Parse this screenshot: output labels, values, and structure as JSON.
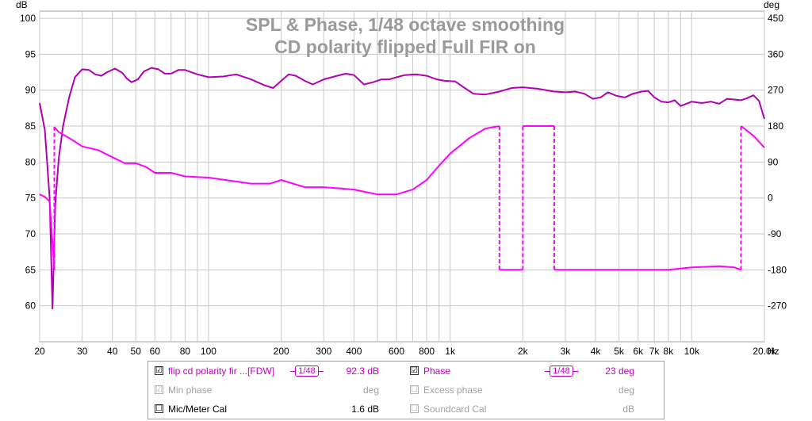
{
  "chart_data": {
    "type": "line",
    "title": [
      "SPL & Phase, 1/48 octave smoothing",
      "CD polarity flipped Full FIR on"
    ],
    "xlabel": "Hz",
    "ylabel_left": "dB",
    "ylabel_right": "deg",
    "x_scale": "log",
    "xlim": [
      20,
      20000
    ],
    "ylim_left": [
      55,
      101
    ],
    "ylim_right": [
      -360,
      468
    ],
    "x_ticks": [
      {
        "v": 20,
        "t": "20"
      },
      {
        "v": 30,
        "t": "30"
      },
      {
        "v": 40,
        "t": "40"
      },
      {
        "v": 50,
        "t": "50"
      },
      {
        "v": 60,
        "t": "60"
      },
      {
        "v": 80,
        "t": "80"
      },
      {
        "v": 100,
        "t": "100"
      },
      {
        "v": 200,
        "t": "200"
      },
      {
        "v": 300,
        "t": "300"
      },
      {
        "v": 400,
        "t": "400"
      },
      {
        "v": 600,
        "t": "600"
      },
      {
        "v": 800,
        "t": "800"
      },
      {
        "v": 1000,
        "t": "1k"
      },
      {
        "v": 2000,
        "t": "2k"
      },
      {
        "v": 3000,
        "t": "3k"
      },
      {
        "v": 4000,
        "t": "4k"
      },
      {
        "v": 5000,
        "t": "5k"
      },
      {
        "v": 6000,
        "t": "6k"
      },
      {
        "v": 7000,
        "t": "7k"
      },
      {
        "v": 8000,
        "t": "8k"
      },
      {
        "v": 10000,
        "t": "10k"
      },
      {
        "v": 20000,
        "t": "20.0k"
      }
    ],
    "y_left_ticks": [
      60,
      65,
      70,
      75,
      80,
      85,
      90,
      95,
      100
    ],
    "y_right_ticks": [
      -270,
      -180,
      -90,
      0,
      90,
      180,
      270,
      360,
      450
    ],
    "grid": true,
    "series": [
      {
        "name": "flip cd polarity fir ...[FDW]",
        "axis": "left",
        "color": "#b000b0",
        "points": [
          [
            20,
            88.2
          ],
          [
            21,
            84.5
          ],
          [
            22,
            75
          ],
          [
            22.6,
            59.6
          ],
          [
            23.2,
            74
          ],
          [
            24,
            80.5
          ],
          [
            25,
            85
          ],
          [
            26.5,
            89
          ],
          [
            28,
            91.8
          ],
          [
            30,
            92.9
          ],
          [
            32,
            92.8
          ],
          [
            34,
            92.2
          ],
          [
            36,
            92.0
          ],
          [
            38,
            92.5
          ],
          [
            41,
            93.0
          ],
          [
            44,
            92.4
          ],
          [
            46,
            91.6
          ],
          [
            48,
            91.1
          ],
          [
            51,
            91.5
          ],
          [
            54,
            92.6
          ],
          [
            58,
            93.1
          ],
          [
            62,
            92.9
          ],
          [
            66,
            92.3
          ],
          [
            70,
            92.3
          ],
          [
            75,
            92.8
          ],
          [
            80,
            92.8
          ],
          [
            90,
            92.2
          ],
          [
            100,
            91.8
          ],
          [
            115,
            91.9
          ],
          [
            130,
            92.2
          ],
          [
            150,
            91.5
          ],
          [
            170,
            90.7
          ],
          [
            185,
            90.3
          ],
          [
            200,
            91.3
          ],
          [
            215,
            92.2
          ],
          [
            230,
            92.0
          ],
          [
            250,
            91.3
          ],
          [
            270,
            90.8
          ],
          [
            300,
            91.5
          ],
          [
            340,
            92.0
          ],
          [
            370,
            92.3
          ],
          [
            400,
            92.1
          ],
          [
            440,
            90.8
          ],
          [
            480,
            91.1
          ],
          [
            520,
            91.5
          ],
          [
            560,
            91.5
          ],
          [
            600,
            91.8
          ],
          [
            650,
            92.1
          ],
          [
            720,
            92.2
          ],
          [
            800,
            92.0
          ],
          [
            880,
            91.5
          ],
          [
            950,
            91.3
          ],
          [
            1050,
            91.2
          ],
          [
            1150,
            90.3
          ],
          [
            1250,
            89.5
          ],
          [
            1400,
            89.4
          ],
          [
            1600,
            89.8
          ],
          [
            1800,
            90.3
          ],
          [
            2000,
            90.4
          ],
          [
            2300,
            90.2
          ],
          [
            2700,
            89.8
          ],
          [
            3000,
            89.7
          ],
          [
            3300,
            89.8
          ],
          [
            3600,
            89.5
          ],
          [
            3900,
            88.8
          ],
          [
            4200,
            89.0
          ],
          [
            4500,
            89.7
          ],
          [
            4900,
            89.2
          ],
          [
            5300,
            89.0
          ],
          [
            5700,
            89.5
          ],
          [
            6200,
            89.8
          ],
          [
            6600,
            89.9
          ],
          [
            7000,
            89.0
          ],
          [
            7500,
            88.4
          ],
          [
            8000,
            88.3
          ],
          [
            8500,
            88.6
          ],
          [
            9000,
            87.8
          ],
          [
            9500,
            88.1
          ],
          [
            10000,
            88.4
          ],
          [
            11000,
            88.2
          ],
          [
            12000,
            88.4
          ],
          [
            13000,
            88.1
          ],
          [
            14000,
            88.8
          ],
          [
            15000,
            88.7
          ],
          [
            16000,
            88.6
          ],
          [
            17000,
            88.9
          ],
          [
            18000,
            89.3
          ],
          [
            19000,
            88.5
          ],
          [
            20000,
            86.0
          ]
        ]
      },
      {
        "name": "Phase",
        "axis": "right",
        "color": "#ff00ff",
        "points": [
          [
            20,
            9
          ],
          [
            21,
            3
          ],
          [
            22,
            -9
          ],
          [
            23,
            -181
          ],
          [
            23,
            178
          ],
          [
            24,
            165
          ],
          [
            26,
            153
          ],
          [
            28,
            141
          ],
          [
            30,
            129
          ],
          [
            35,
            120
          ],
          [
            40,
            102
          ],
          [
            45,
            87
          ],
          [
            50,
            87
          ],
          [
            55,
            78
          ],
          [
            60,
            63
          ],
          [
            70,
            63
          ],
          [
            80,
            54
          ],
          [
            100,
            51
          ],
          [
            150,
            36
          ],
          [
            180,
            36
          ],
          [
            200,
            45
          ],
          [
            250,
            27
          ],
          [
            300,
            27
          ],
          [
            350,
            24
          ],
          [
            400,
            21
          ],
          [
            500,
            9
          ],
          [
            600,
            9
          ],
          [
            700,
            21
          ],
          [
            800,
            45
          ],
          [
            900,
            81
          ],
          [
            1000,
            111
          ],
          [
            1200,
            150
          ],
          [
            1400,
            174
          ],
          [
            1600,
            180
          ],
          [
            1600,
            -180
          ],
          [
            1800,
            -180
          ],
          [
            2000,
            -180
          ],
          [
            2000,
            180
          ],
          [
            2300,
            180
          ],
          [
            2700,
            180
          ],
          [
            2700,
            -180
          ],
          [
            3000,
            -180
          ],
          [
            4000,
            -180
          ],
          [
            5000,
            -180
          ],
          [
            6000,
            -180
          ],
          [
            7000,
            -180
          ],
          [
            8000,
            -180
          ],
          [
            10000,
            -174
          ],
          [
            13000,
            -171
          ],
          [
            15000,
            -174
          ],
          [
            16000,
            -180
          ],
          [
            16000,
            180
          ],
          [
            18000,
            156
          ],
          [
            20000,
            126
          ]
        ]
      }
    ]
  },
  "legend": {
    "row1": {
      "name": "flip cd polarity  fir ...[FDW]",
      "smoothing": "1/48",
      "value": "92.3 dB",
      "phase_label": "Phase",
      "phase_smoothing": "1/48",
      "phase_value": "23 deg",
      "checked": "☑",
      "phase_checked": "☑"
    },
    "row2": {
      "label": "Min phase",
      "unit": "deg",
      "excess_label": "Excess phase",
      "excess_unit": "deg",
      "checked": "☑",
      "excess_checked": "☐"
    },
    "row3": {
      "label": "Mic/Meter Cal",
      "value": "1.6 dB",
      "soundcard_label": "Soundcard Cal",
      "soundcard_unit": "dB",
      "checked": "☐",
      "soundcard_checked": "☐"
    }
  }
}
